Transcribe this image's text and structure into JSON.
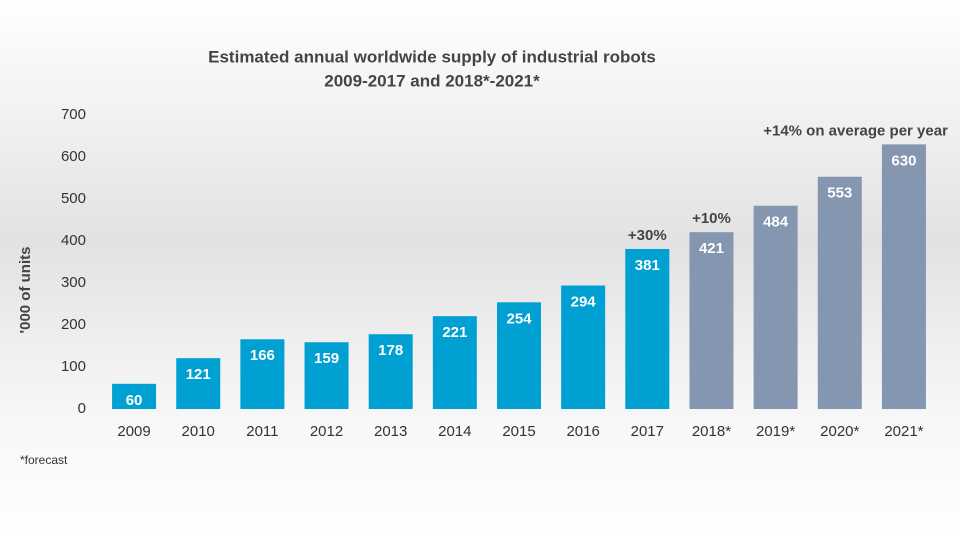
{
  "chart_data": {
    "type": "bar",
    "title": [
      "Estimated annual worldwide supply of industrial robots",
      "2009-2017 and 2018*-2021*"
    ],
    "y_label": "'000 of units",
    "categories": [
      "2009",
      "2010",
      "2011",
      "2012",
      "2013",
      "2014",
      "2015",
      "2016",
      "2017",
      "2018*",
      "2019*",
      "2020*",
      "2021*"
    ],
    "values": [
      60,
      121,
      166,
      159,
      178,
      221,
      254,
      294,
      381,
      421,
      484,
      553,
      630
    ],
    "colors": [
      "#00a0d2",
      "#00a0d2",
      "#00a0d2",
      "#00a0d2",
      "#00a0d2",
      "#00a0d2",
      "#00a0d2",
      "#00a0d2",
      "#00a0d2",
      "#8496b0",
      "#8496b0",
      "#8496b0",
      "#8496b0"
    ],
    "ylim": [
      0,
      700
    ],
    "yticks": [
      0,
      100,
      200,
      300,
      400,
      500,
      600,
      700
    ],
    "grid": false,
    "annotations": [
      "+30%",
      "+10%",
      "+14% on average per year"
    ],
    "footnote": "*forecast"
  }
}
